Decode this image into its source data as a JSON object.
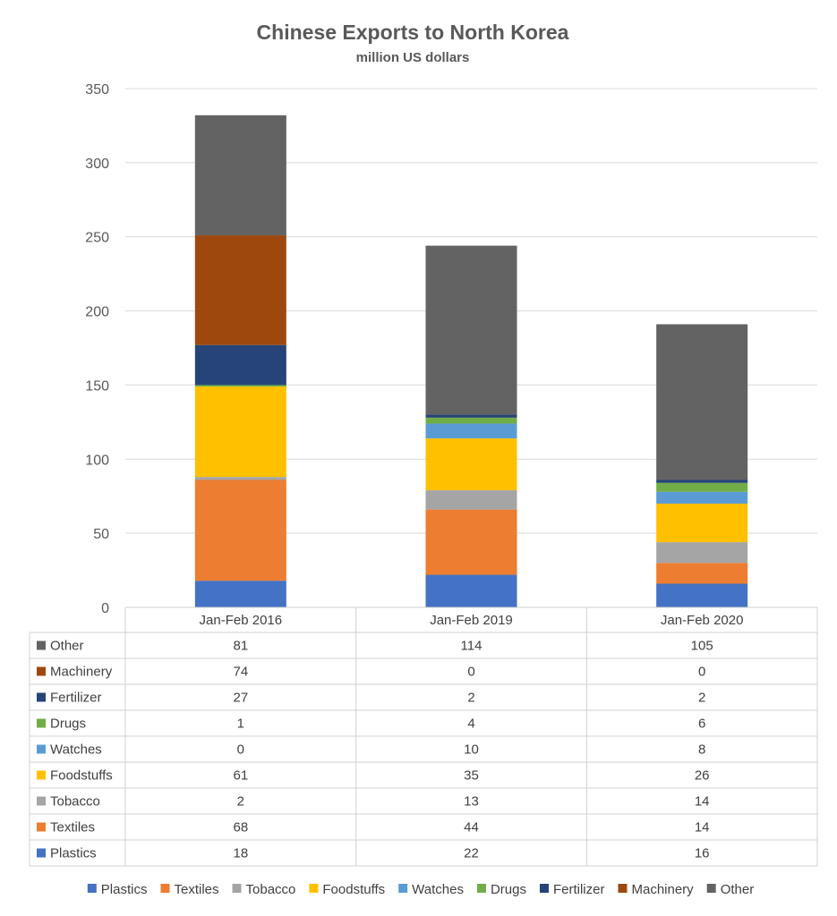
{
  "chart_data": {
    "type": "bar",
    "stacked": true,
    "title": "Chinese Exports to North Korea",
    "subtitle": "million US dollars",
    "categories": [
      "Jan-Feb 2016",
      "Jan-Feb 2019",
      "Jan-Feb 2020"
    ],
    "ylim": [
      0,
      350
    ],
    "yticks": [
      0,
      50,
      100,
      150,
      200,
      250,
      300,
      350
    ],
    "grid": true,
    "legend_position": "bottom",
    "data_table": true,
    "series": [
      {
        "name": "Plastics",
        "color": "#4472C4",
        "values": [
          18,
          22,
          16
        ]
      },
      {
        "name": "Textiles",
        "color": "#ED7D31",
        "values": [
          68,
          44,
          14
        ]
      },
      {
        "name": "Tobacco",
        "color": "#A5A5A5",
        "values": [
          2,
          13,
          14
        ]
      },
      {
        "name": "Foodstuffs",
        "color": "#FFC000",
        "values": [
          61,
          35,
          26
        ]
      },
      {
        "name": "Watches",
        "color": "#5B9BD5",
        "values": [
          0,
          10,
          8
        ]
      },
      {
        "name": "Drugs",
        "color": "#70AD47",
        "values": [
          1,
          4,
          6
        ]
      },
      {
        "name": "Fertilizer",
        "color": "#264478",
        "values": [
          27,
          2,
          2
        ]
      },
      {
        "name": "Machinery",
        "color": "#9E480E",
        "values": [
          74,
          0,
          0
        ]
      },
      {
        "name": "Other",
        "color": "#636363",
        "values": [
          81,
          114,
          105
        ]
      }
    ]
  }
}
